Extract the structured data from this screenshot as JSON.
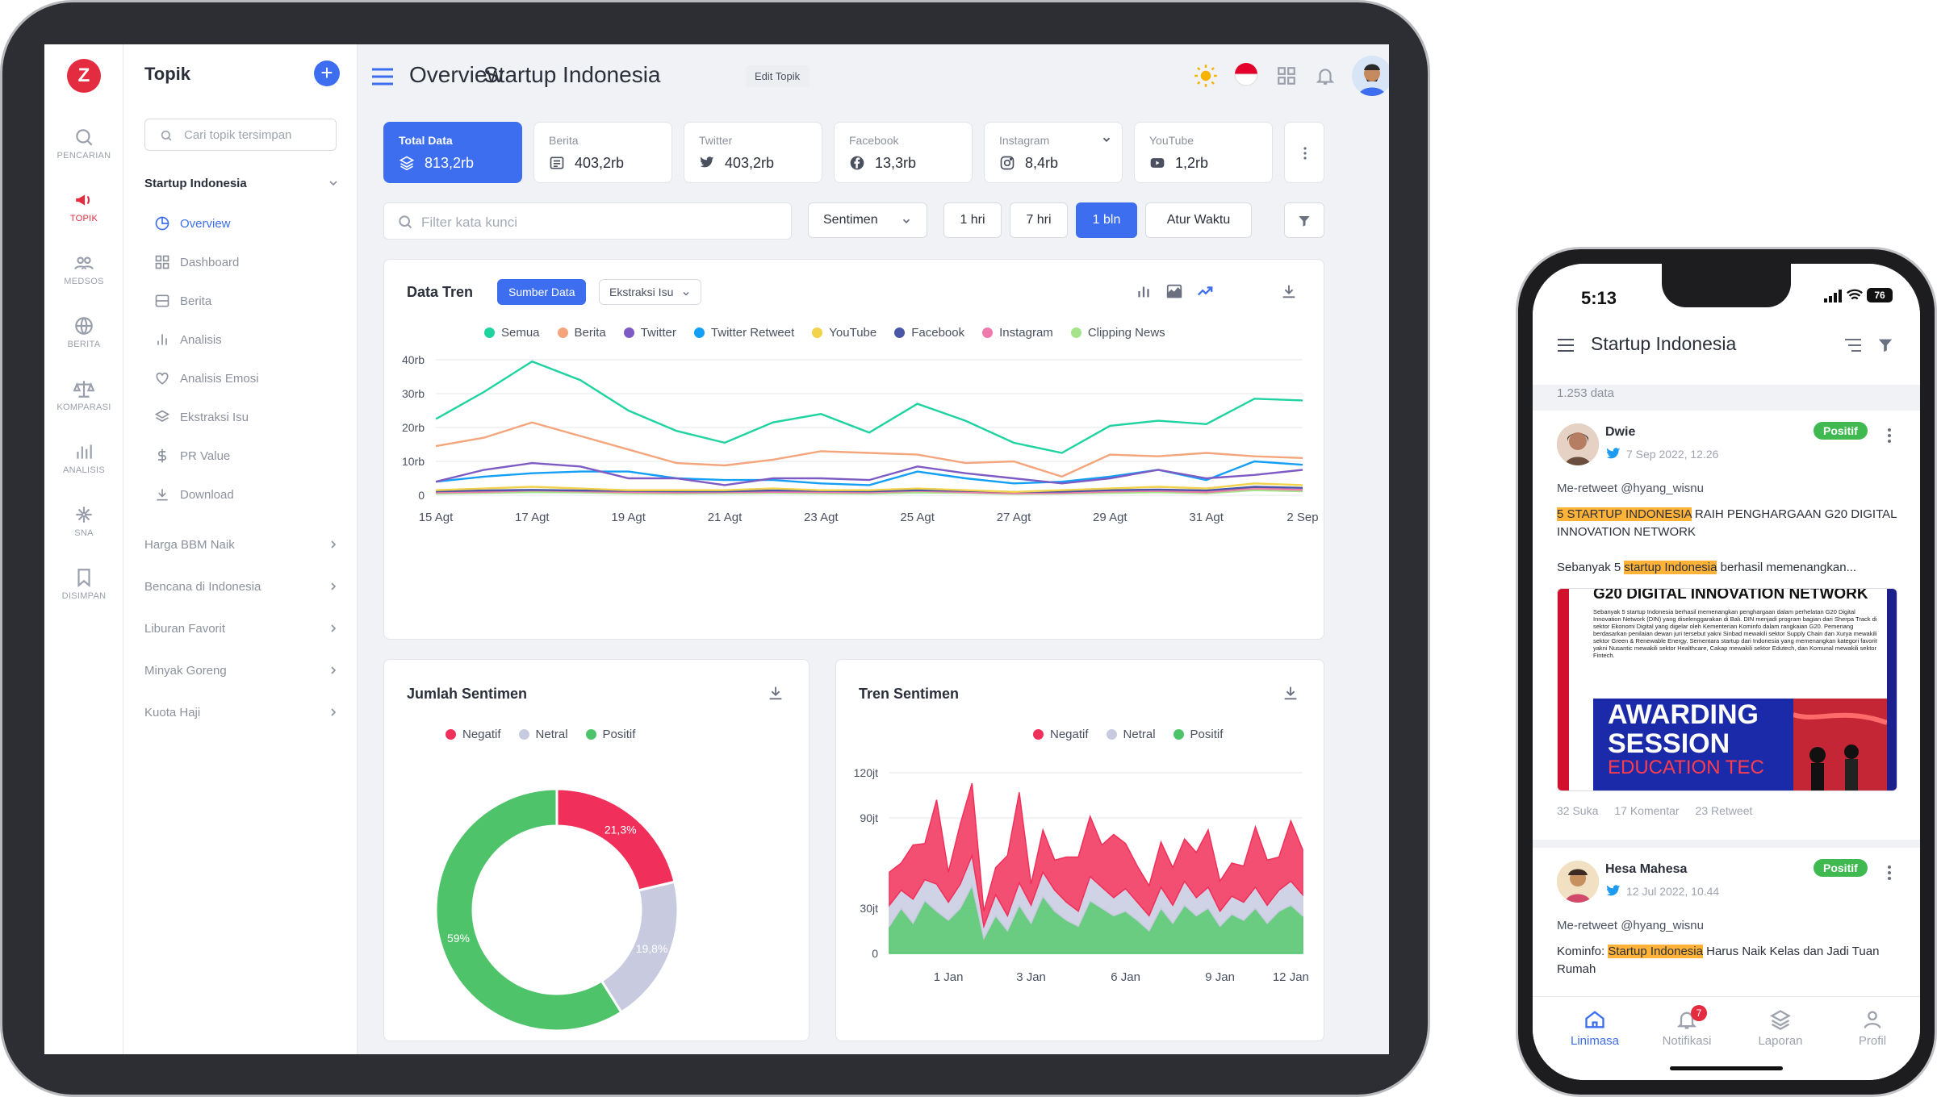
{
  "rail": {
    "logo": "Z",
    "items": [
      {
        "label": "PENCARIAN",
        "icon": "search-icon"
      },
      {
        "label": "TOPIK",
        "icon": "megaphone-icon"
      },
      {
        "label": "MEDSOS",
        "icon": "users-icon"
      },
      {
        "label": "BERITA",
        "icon": "globe-icon"
      },
      {
        "label": "KOMPARASI",
        "icon": "scale-icon"
      },
      {
        "label": "ANALISIS",
        "icon": "bars-icon"
      },
      {
        "label": "SNA",
        "icon": "network-icon"
      },
      {
        "label": "DISIMPAN",
        "icon": "bookmark-icon"
      }
    ]
  },
  "sidebar": {
    "title": "Topik",
    "search_placeholder": "Cari topik tersimpan",
    "active_topic": "Startup Indonesia",
    "sub_items": [
      {
        "label": "Overview",
        "icon": "pie-icon"
      },
      {
        "label": "Dashboard",
        "icon": "grid-icon"
      },
      {
        "label": "Berita",
        "icon": "news-icon"
      },
      {
        "label": "Analisis",
        "icon": "bar-chart-icon"
      },
      {
        "label": "Analisis Emosi",
        "icon": "heart-icon"
      },
      {
        "label": "Ekstraksi Isu",
        "icon": "layers-icon"
      },
      {
        "label": "PR Value",
        "icon": "dollar-icon"
      },
      {
        "label": "Download",
        "icon": "download-icon"
      }
    ],
    "topics": [
      "Harga BBM Naik",
      "Bencana di Indonesia",
      "Liburan Favorit",
      "Minyak Goreng",
      "Kuota Haji"
    ]
  },
  "header": {
    "title": "Overview",
    "subtitle": "Startup Indonesia",
    "edit_label": "Edit Topik"
  },
  "stats": [
    {
      "label": "Total Data",
      "value": "813,2rb",
      "icon": "layers-icon"
    },
    {
      "label": "Berita",
      "value": "403,2rb",
      "icon": "news-icon"
    },
    {
      "label": "Twitter",
      "value": "403,2rb",
      "icon": "twitter-icon"
    },
    {
      "label": "Facebook",
      "value": "13,3rb",
      "icon": "facebook-icon"
    },
    {
      "label": "Instagram",
      "value": "8,4rb",
      "icon": "instagram-icon"
    },
    {
      "label": "YouTube",
      "value": "1,2rb",
      "icon": "youtube-icon"
    }
  ],
  "filters": {
    "keyword_placeholder": "Filter kata kunci",
    "sentiment_label": "Sentimen",
    "ranges": [
      "1 hri",
      "7 hri",
      "1 bln"
    ],
    "active_range": 2,
    "custom_time": "Atur Waktu"
  },
  "colors": {
    "accent": "#3d6ef0",
    "brand": "#e32c3f",
    "negative": "#f0305a",
    "neutral": "#c8cbe0",
    "positive": "#4fc36a"
  },
  "chart_data": [
    {
      "type": "line",
      "title": "Data Tren",
      "tabs": [
        "Sumber Data",
        "Ekstraksi Isu"
      ],
      "x": [
        "15 Agt",
        "16 Agt",
        "17 Agt",
        "18 Agt",
        "19 Agt",
        "20 Agt",
        "21 Agt",
        "22 Agt",
        "23 Agt",
        "24 Agt",
        "25 Agt",
        "26 Agt",
        "27 Agt",
        "28 Agt",
        "29 Agt",
        "30 Agt",
        "31 Agt",
        "1 Sep",
        "2 Sep"
      ],
      "x_ticks": [
        "15 Agt",
        "17 Agt",
        "19 Agt",
        "21 Agt",
        "23 Agt",
        "25 Agt",
        "27 Agt",
        "29 Agt",
        "31 Agt",
        "2 Sep"
      ],
      "y_ticks": [
        "0",
        "10rb",
        "20rb",
        "30rb",
        "40rb"
      ],
      "ylim": [
        0,
        40000
      ],
      "grid": true,
      "legend_position": "top",
      "series": [
        {
          "name": "Semua",
          "color": "#1ed3a0",
          "values": [
            22500,
            30500,
            39500,
            34000,
            25000,
            19000,
            15500,
            21500,
            24000,
            18500,
            27000,
            22000,
            15500,
            12500,
            20500,
            22000,
            21000,
            28500,
            28000
          ]
        },
        {
          "name": "Berita",
          "color": "#f4a57c",
          "values": [
            14500,
            17000,
            21500,
            17500,
            13500,
            9500,
            8800,
            10500,
            13000,
            12500,
            12000,
            9500,
            10000,
            5500,
            12000,
            11500,
            12500,
            11500,
            11000
          ]
        },
        {
          "name": "Twitter",
          "color": "#7e5bc4",
          "values": [
            4000,
            7500,
            9500,
            8500,
            5000,
            5000,
            3000,
            5000,
            5000,
            4500,
            8500,
            6500,
            5000,
            3500,
            5000,
            7500,
            5000,
            6000,
            7500
          ]
        },
        {
          "name": "Twitter Retweet",
          "color": "#139ff5",
          "values": [
            4000,
            5500,
            6500,
            7000,
            7000,
            5000,
            4500,
            4500,
            3500,
            3000,
            7000,
            5000,
            3500,
            4000,
            5500,
            7500,
            4500,
            10000,
            9000
          ]
        },
        {
          "name": "YouTube",
          "color": "#f2d34a",
          "values": [
            1500,
            2000,
            2500,
            2000,
            1500,
            1500,
            1500,
            2000,
            1500,
            1500,
            2000,
            1500,
            1000,
            1500,
            2000,
            2500,
            2000,
            3500,
            3000
          ]
        },
        {
          "name": "Facebook",
          "color": "#4a56a6",
          "values": [
            1200,
            1400,
            1600,
            1400,
            1300,
            1200,
            1200,
            1400,
            1300,
            1200,
            1500,
            1300,
            1000,
            1100,
            1500,
            1700,
            1400,
            2500,
            2200
          ]
        },
        {
          "name": "Instagram",
          "color": "#ee7bab",
          "values": [
            800,
            1000,
            1400,
            1200,
            900,
            800,
            900,
            1000,
            900,
            800,
            1300,
            900,
            600,
            700,
            1100,
            1300,
            900,
            2000,
            1600
          ]
        },
        {
          "name": "Clipping News",
          "color": "#a5e38a",
          "values": [
            500,
            700,
            900,
            800,
            600,
            500,
            600,
            700,
            600,
            500,
            800,
            700,
            400,
            500,
            700,
            900,
            600,
            1500,
            1200
          ]
        }
      ]
    },
    {
      "type": "pie",
      "title": "Jumlah Sentimen",
      "legend_position": "top",
      "series": [
        {
          "name": "Negatif",
          "value": 21.3,
          "label": "21,3%",
          "color": "#f0305a"
        },
        {
          "name": "Netral",
          "value": 19.8,
          "label": "19,8%",
          "color": "#c8cbe0"
        },
        {
          "name": "Positif",
          "value": 59,
          "label": "59%",
          "color": "#4fc36a"
        }
      ]
    },
    {
      "type": "area",
      "title": "Tren Sentimen",
      "stacked": true,
      "legend_position": "top",
      "x_ticks": [
        "1 Jan",
        "3 Jan",
        "6 Jan",
        "9 Jan",
        "12 Jan"
      ],
      "y_ticks": [
        "0",
        "30jt",
        "90jt",
        "120jt"
      ],
      "ylim": [
        0,
        120000000
      ],
      "series": [
        {
          "name": "Positif",
          "color": "#4fc36a",
          "values": [
            18,
            30,
            20,
            35,
            28,
            22,
            30,
            45,
            10,
            25,
            15,
            32,
            20,
            38,
            28,
            22,
            18,
            35,
            30,
            25,
            28,
            22,
            15,
            30,
            20,
            32,
            25,
            30,
            18,
            26,
            22,
            30,
            20,
            28,
            32,
            25
          ]
        },
        {
          "name": "Netral",
          "color": "#c8cbe0",
          "values": [
            14,
            12,
            16,
            14,
            18,
            12,
            16,
            20,
            8,
            14,
            10,
            15,
            12,
            16,
            14,
            12,
            10,
            16,
            14,
            12,
            15,
            12,
            10,
            14,
            12,
            16,
            12,
            14,
            10,
            12,
            12,
            14,
            12,
            14,
            16,
            14
          ]
        },
        {
          "name": "Negatif",
          "color": "#f0305a",
          "values": [
            22,
            18,
            36,
            24,
            56,
            20,
            40,
            48,
            10,
            18,
            40,
            60,
            14,
            28,
            20,
            30,
            36,
            40,
            28,
            42,
            30,
            24,
            20,
            30,
            25,
            28,
            30,
            38,
            20,
            22,
            24,
            40,
            30,
            22,
            40,
            30
          ]
        }
      ]
    }
  ],
  "phone": {
    "time": "5:13",
    "battery": "76",
    "title": "Startup Indonesia",
    "count": "1.253",
    "count_label": "data",
    "posts": [
      {
        "name": "Dwie",
        "date": "7 Sep 2022, 12.26",
        "badge": "Positif",
        "retweet": "Me-retweet @hyang_wisnu",
        "hl1": "5 STARTUP INDONESIA",
        "text1": " RAIH PENGHARGAAN G20 DIGITAL INNOVATION NETWORK",
        "pre2": "Sebanyak 5 ",
        "hl2": "startup Indonesia",
        "text2": " berhasil memenangkan...",
        "img_title": "G20 DIGITAL INNOVATION NETWORK",
        "img_headline": "AWARDING SESSION",
        "img_sub": "EDUCATION TEC",
        "img_body": "Sebanyak 5 startup Indonesia berhasil memenangkan penghargaan dalam perhelatan G20 Digital Innovation Network (DIN) yang diselenggarakan di Bali. DIN menjadi program bagian dari Sherpa Track di sektor Ekonomi Digital yang digelar oleh Kementerian Kominfo dalam rangkaian G20. Pemenang berdasarkan penilaian dewan juri tersebut yakni Sinbad mewakili sektor Supply Chain dan Xurya mewakili sektor Green & Renewable Energy. Sementara startup dari Indonesia yang memenangkan kategori favorit yakni Nusantic mewakili sektor Healthcare, Cakap mewakili sektor Edutech, dan Komunal mewakili sektor Fintech.",
        "stats": [
          "32 Suka",
          "17 Komentar",
          "23 Retweet"
        ]
      },
      {
        "name": "Hesa Mahesa",
        "date": "12 Jul 2022, 10.44",
        "badge": "Positif",
        "retweet": "Me-retweet @hyang_wisnu",
        "pre1": "Kominfo: ",
        "hl1": "Startup Indonesia",
        "text1": " Harus Naik Kelas dan Jadi Tuan Rumah"
      }
    ],
    "nav": [
      {
        "label": "Linimasa",
        "icon": "home-icon"
      },
      {
        "label": "Notifikasi",
        "icon": "bell-icon",
        "badge": "7"
      },
      {
        "label": "Laporan",
        "icon": "layers-icon"
      },
      {
        "label": "Profil",
        "icon": "user-icon"
      }
    ]
  }
}
